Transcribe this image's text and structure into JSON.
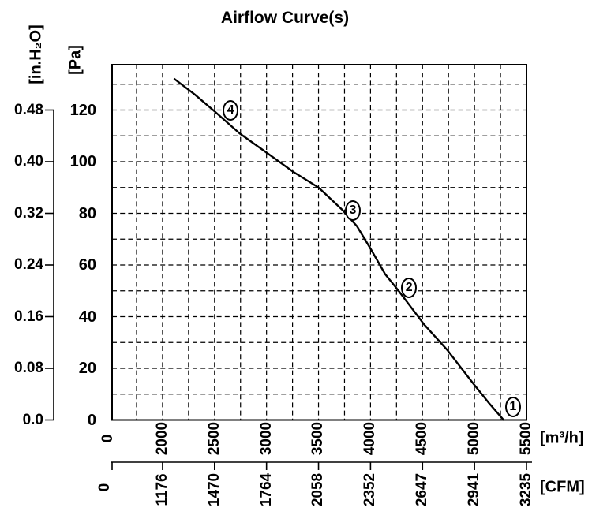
{
  "title": "Airflow Curve(s)",
  "chart_data": {
    "type": "line",
    "title": "Airflow Curve(s)",
    "grid": {
      "on": true,
      "x_step_m3h": 250,
      "y_step_pa": 10
    },
    "x_axis": {
      "primary": {
        "unit": "[m³/h]",
        "ticks": [
          "0",
          "2000",
          "2500",
          "3000",
          "3500",
          "4000",
          "4500",
          "5000",
          "5500"
        ]
      },
      "secondary": {
        "unit": "[CFM]",
        "ticks": [
          "0",
          "1176",
          "1470",
          "1764",
          "2058",
          "2352",
          "2647",
          "2941",
          "3235"
        ]
      }
    },
    "y_axis": {
      "primary": {
        "unit": "[Pa]",
        "ticks": [
          "0",
          "20",
          "40",
          "60",
          "80",
          "100",
          "120"
        ]
      },
      "secondary": {
        "unit": "[in.H₂O]",
        "ticks": [
          "0.0",
          "0.08",
          "0.16",
          "0.24",
          "0.32",
          "0.40",
          "0.48"
        ]
      }
    },
    "xlim_m3h": [
      1750,
      5500
    ],
    "ylim_pa": [
      0,
      137.7
    ],
    "series": [
      {
        "name": "airflow-curve",
        "points": [
          [
            2115,
            132
          ],
          [
            2310,
            126
          ],
          [
            2500,
            119.5
          ],
          [
            2740,
            111
          ],
          [
            3000,
            103.5
          ],
          [
            3260,
            96
          ],
          [
            3500,
            90
          ],
          [
            3725,
            81.5
          ],
          [
            3870,
            75
          ],
          [
            4005,
            66
          ],
          [
            4140,
            56.5
          ],
          [
            4270,
            50
          ],
          [
            4515,
            37
          ],
          [
            4740,
            27
          ],
          [
            4990,
            14
          ],
          [
            5140,
            6.5
          ],
          [
            5280,
            0
          ]
        ]
      }
    ],
    "markers": [
      {
        "label": "1",
        "m3h": 5370,
        "pa": 5
      },
      {
        "label": "2",
        "m3h": 4370,
        "pa": 51
      },
      {
        "label": "3",
        "m3h": 3830,
        "pa": 81
      },
      {
        "label": "4",
        "m3h": 2655,
        "pa": 120
      }
    ]
  }
}
